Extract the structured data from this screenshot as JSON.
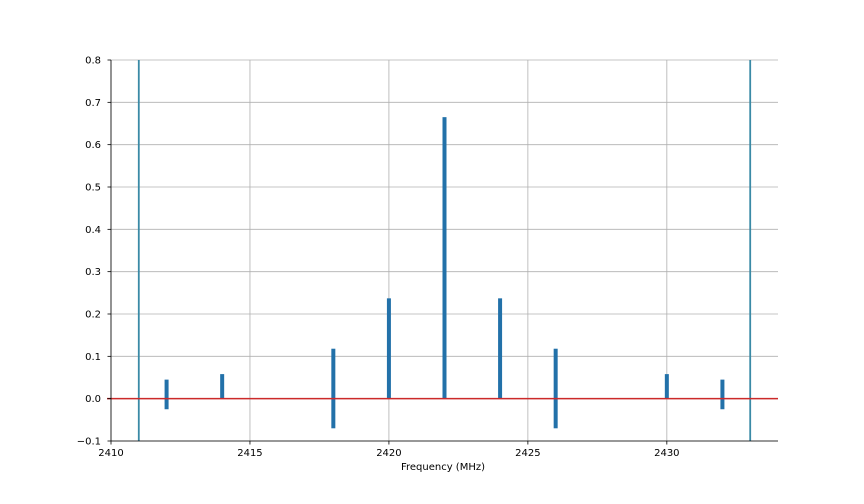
{
  "chart_data": {
    "type": "bar",
    "title": "",
    "xlabel": "Frequency (MHz)",
    "ylabel": "",
    "xlim": [
      2410,
      2434
    ],
    "ylim": [
      -0.1,
      0.8
    ],
    "x_ticks": [
      2410,
      2415,
      2420,
      2425,
      2430
    ],
    "x_tick_labels": [
      "2410",
      "2415",
      "2420",
      "2425",
      "2430"
    ],
    "y_ticks": [
      -0.1,
      0.0,
      0.1,
      0.2,
      0.3,
      0.4,
      0.5,
      0.6,
      0.7,
      0.8
    ],
    "y_tick_labels": [
      "−0.1",
      "0.0",
      "0.1",
      "0.2",
      "0.3",
      "0.4",
      "0.5",
      "0.6",
      "0.7",
      "0.8"
    ],
    "grid": true,
    "bar_color": "#2271a9",
    "series": [
      {
        "x": [
          2412,
          2414,
          2418,
          2420,
          2422,
          2424,
          2426,
          2430,
          2432
        ],
        "values": [
          0.045,
          0.058,
          0.118,
          0.237,
          0.665,
          0.237,
          0.118,
          0.058,
          0.045
        ]
      },
      {
        "x": [
          2412,
          2418,
          2426,
          2432
        ],
        "values": [
          -0.025,
          -0.07,
          -0.07,
          -0.025
        ]
      }
    ],
    "vertical_lines": [
      {
        "x": 2411,
        "color": "#3a8aa6"
      },
      {
        "x": 2433,
        "color": "#3a8aa6"
      }
    ],
    "horizontal_lines": [
      {
        "y": 0.0,
        "color": "#cc2a2a"
      }
    ],
    "colors": {
      "grid": "#b0b0b0",
      "axis": "#000000"
    }
  }
}
